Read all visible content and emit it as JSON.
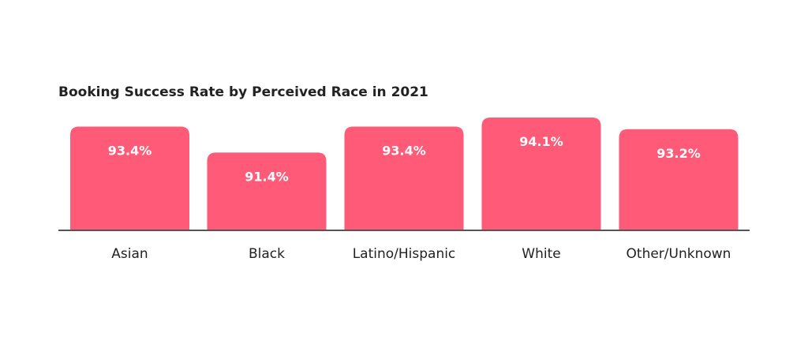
{
  "chart_data": {
    "type": "bar",
    "title": "Booking Success Rate by Perceived Race in 2021",
    "categories": [
      "Asian",
      "Black",
      "Latino/Hispanic",
      "White",
      "Other/Unknown"
    ],
    "values": [
      93.4,
      91.4,
      93.4,
      94.1,
      93.2
    ],
    "data_labels": [
      "93.4%",
      "91.4%",
      "93.4%",
      "94.1%",
      "93.2%"
    ],
    "xlabel": "",
    "ylabel": "",
    "ylim": [
      85.4,
      94.1
    ],
    "unit": "%",
    "grid": false,
    "legend": "none",
    "colors": {
      "bar": "#ff5a77",
      "baseline": "#555555",
      "title": "#222222",
      "label": "#ffffff",
      "axis_text": "#222222"
    }
  }
}
